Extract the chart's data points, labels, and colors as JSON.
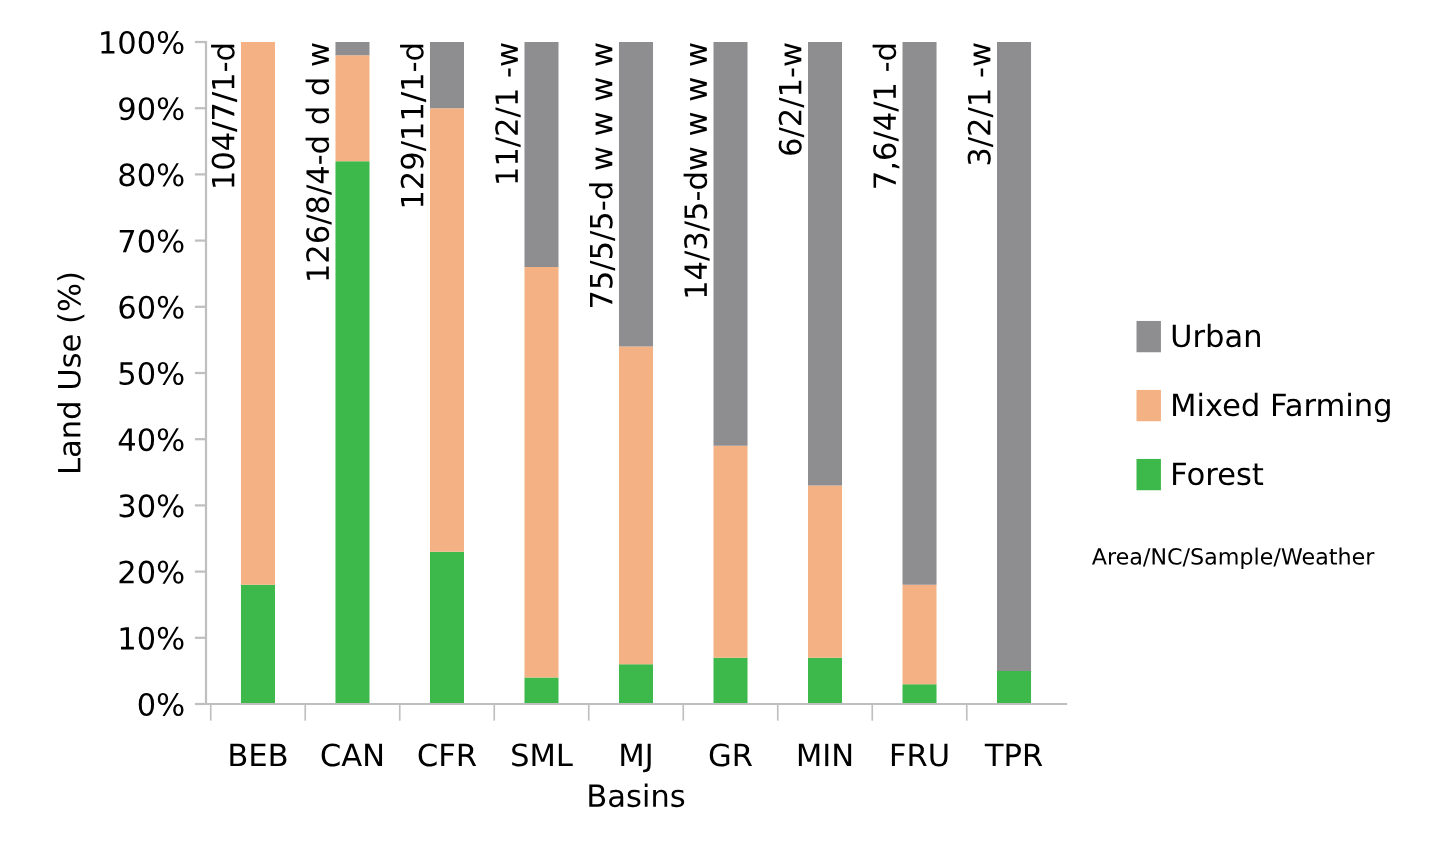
{
  "chart_data": {
    "type": "bar",
    "stacked": true,
    "xlabel": "Basins",
    "ylabel": "Land Use (%)",
    "categories": [
      "BEB",
      "CAN",
      "CFR",
      "SML",
      "MJ",
      "GR",
      "MIN",
      "FRU",
      "TPR"
    ],
    "series": [
      {
        "name": "Forest",
        "color": "#3cb94a",
        "values": [
          18,
          82,
          23,
          4,
          6,
          7,
          7,
          3,
          5
        ]
      },
      {
        "name": "Mixed Farming",
        "color": "#f4b183",
        "values": [
          82,
          16,
          67,
          62,
          48,
          32,
          26,
          15,
          0
        ]
      },
      {
        "name": "Urban",
        "color": "#8e8e90",
        "values": [
          0,
          2,
          10,
          34,
          46,
          61,
          67,
          82,
          95
        ]
      }
    ],
    "ylim": [
      0,
      100
    ],
    "yticks": [
      {
        "value": 0,
        "label": "0%"
      },
      {
        "value": 10,
        "label": "10%"
      },
      {
        "value": 20,
        "label": "20%"
      },
      {
        "value": 30,
        "label": "30%"
      },
      {
        "value": 40,
        "label": "40%"
      },
      {
        "value": 50,
        "label": "50%"
      },
      {
        "value": 60,
        "label": "60%"
      },
      {
        "value": 70,
        "label": "70%"
      },
      {
        "value": 80,
        "label": "80%"
      },
      {
        "value": 90,
        "label": "90%"
      },
      {
        "value": 100,
        "label": "100%"
      }
    ],
    "legend": "right",
    "annotations": [
      {
        "text": "104/7/1-d",
        "x": "BEB",
        "y": 100
      },
      {
        "text": "126/8/4-d d d w",
        "x": "CAN",
        "y": 100
      },
      {
        "text": "129/11/1-d",
        "x": "CFR",
        "y": 100
      },
      {
        "text": "11/2/1 -w",
        "x": "SML",
        "y": 100
      },
      {
        "text": "75/5/5-d w w w w",
        "x": "MJ",
        "y": 100
      },
      {
        "text": "14/3/5-dw w w w",
        "x": "GR",
        "y": 100
      },
      {
        "text": "6/2/1-w",
        "x": "MIN",
        "y": 100
      },
      {
        "text": "7,6/4/1 -d",
        "x": "FRU",
        "y": 100
      },
      {
        "text": "3/2/1 -w",
        "x": "TPR",
        "y": 100
      },
      "Area/NC/Sample/Weather"
    ]
  }
}
